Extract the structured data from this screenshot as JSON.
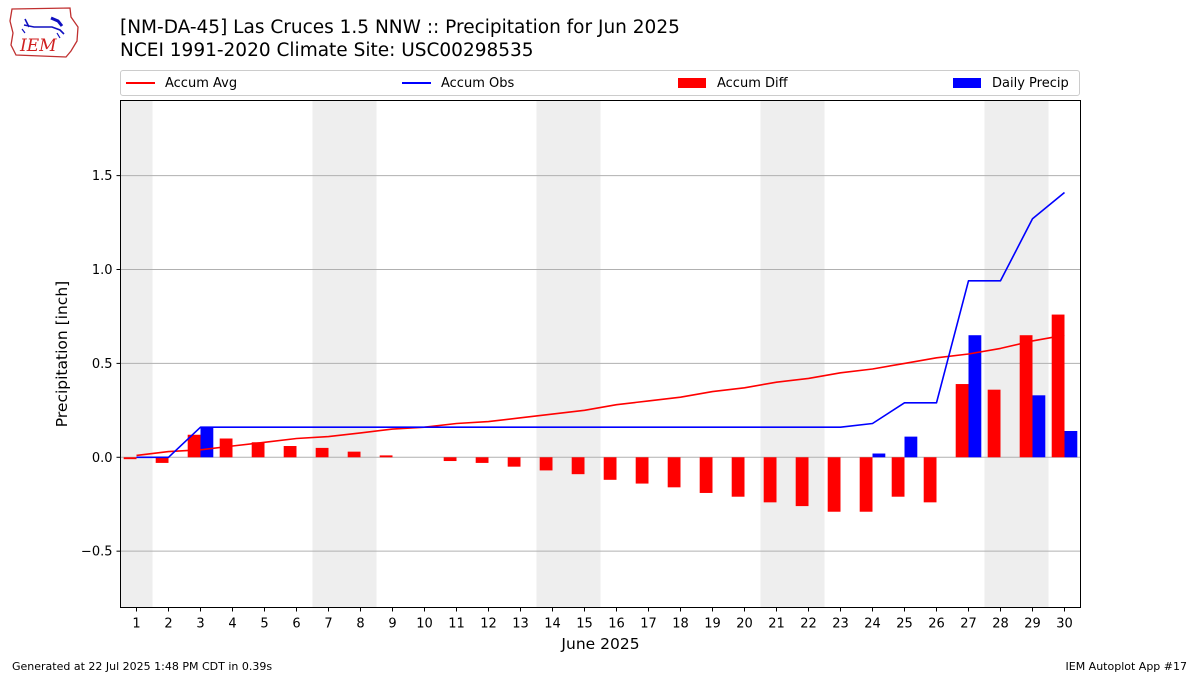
{
  "header": {
    "logo_text": "IEM",
    "title_line1": "[NM-DA-45] Las Cruces 1.5 NNW :: Precipitation for Jun 2025",
    "title_line2": "NCEI 1991-2020 Climate Site: USC00298535"
  },
  "legend": {
    "accum_avg": "Accum Avg",
    "accum_obs": "Accum Obs",
    "accum_diff": "Accum Diff",
    "daily_precip": "Daily Precip"
  },
  "colors": {
    "accum_avg": "#ff0000",
    "accum_obs": "#0000ff",
    "accum_diff": "#ff0000",
    "daily_precip": "#0000ff",
    "weekend_shade": "#eeeeee",
    "grid": "#b0b0b0"
  },
  "chart_data": {
    "type": "bar",
    "xlabel": "June 2025",
    "ylabel": "Precipitation [inch]",
    "ylim": [
      -0.8,
      1.9
    ],
    "yticks": [
      -0.5,
      0.0,
      0.5,
      1.0,
      1.5
    ],
    "ytick_labels": [
      "−0.5",
      "0.0",
      "0.5",
      "1.0",
      "1.5"
    ],
    "grid": "horizontal",
    "legend_position": "top",
    "x": [
      1,
      2,
      3,
      4,
      5,
      6,
      7,
      8,
      9,
      10,
      11,
      12,
      13,
      14,
      15,
      16,
      17,
      18,
      19,
      20,
      21,
      22,
      23,
      24,
      25,
      26,
      27,
      28,
      29,
      30
    ],
    "weekend_days": [
      1,
      7,
      8,
      14,
      15,
      21,
      22,
      28,
      29
    ],
    "series": [
      {
        "name": "Accum Avg",
        "kind": "line",
        "values": [
          0.01,
          0.03,
          0.04,
          0.06,
          0.08,
          0.1,
          0.11,
          0.13,
          0.15,
          0.16,
          0.18,
          0.19,
          0.21,
          0.23,
          0.25,
          0.28,
          0.3,
          0.32,
          0.35,
          0.37,
          0.4,
          0.42,
          0.45,
          0.47,
          0.5,
          0.53,
          0.55,
          0.58,
          0.62,
          0.65
        ]
      },
      {
        "name": "Accum Obs",
        "kind": "line",
        "values": [
          0.0,
          0.0,
          0.16,
          0.16,
          0.16,
          0.16,
          0.16,
          0.16,
          0.16,
          0.16,
          0.16,
          0.16,
          0.16,
          0.16,
          0.16,
          0.16,
          0.16,
          0.16,
          0.16,
          0.16,
          0.16,
          0.16,
          0.16,
          0.18,
          0.29,
          0.29,
          0.94,
          0.94,
          1.27,
          1.41
        ]
      },
      {
        "name": "Accum Diff",
        "kind": "bar",
        "values": [
          -0.01,
          -0.03,
          0.12,
          0.1,
          0.08,
          0.06,
          0.05,
          0.03,
          0.01,
          0.0,
          -0.02,
          -0.03,
          -0.05,
          -0.07,
          -0.09,
          -0.12,
          -0.14,
          -0.16,
          -0.19,
          -0.21,
          -0.24,
          -0.26,
          -0.29,
          -0.29,
          -0.21,
          -0.24,
          0.39,
          0.36,
          0.65,
          0.76
        ]
      },
      {
        "name": "Daily Precip",
        "kind": "bar",
        "values": [
          0.0,
          0.0,
          0.16,
          0.0,
          0.0,
          0.0,
          0.0,
          0.0,
          0.0,
          0.0,
          0.0,
          0.0,
          0.0,
          0.0,
          0.0,
          0.0,
          0.0,
          0.0,
          0.0,
          0.0,
          0.0,
          0.0,
          0.0,
          0.02,
          0.11,
          0.0,
          0.65,
          0.0,
          0.33,
          0.14
        ]
      }
    ]
  },
  "footer": {
    "generated": "Generated at 22 Jul 2025 1:48 PM CDT in 0.39s",
    "app": "IEM Autoplot App #17"
  }
}
